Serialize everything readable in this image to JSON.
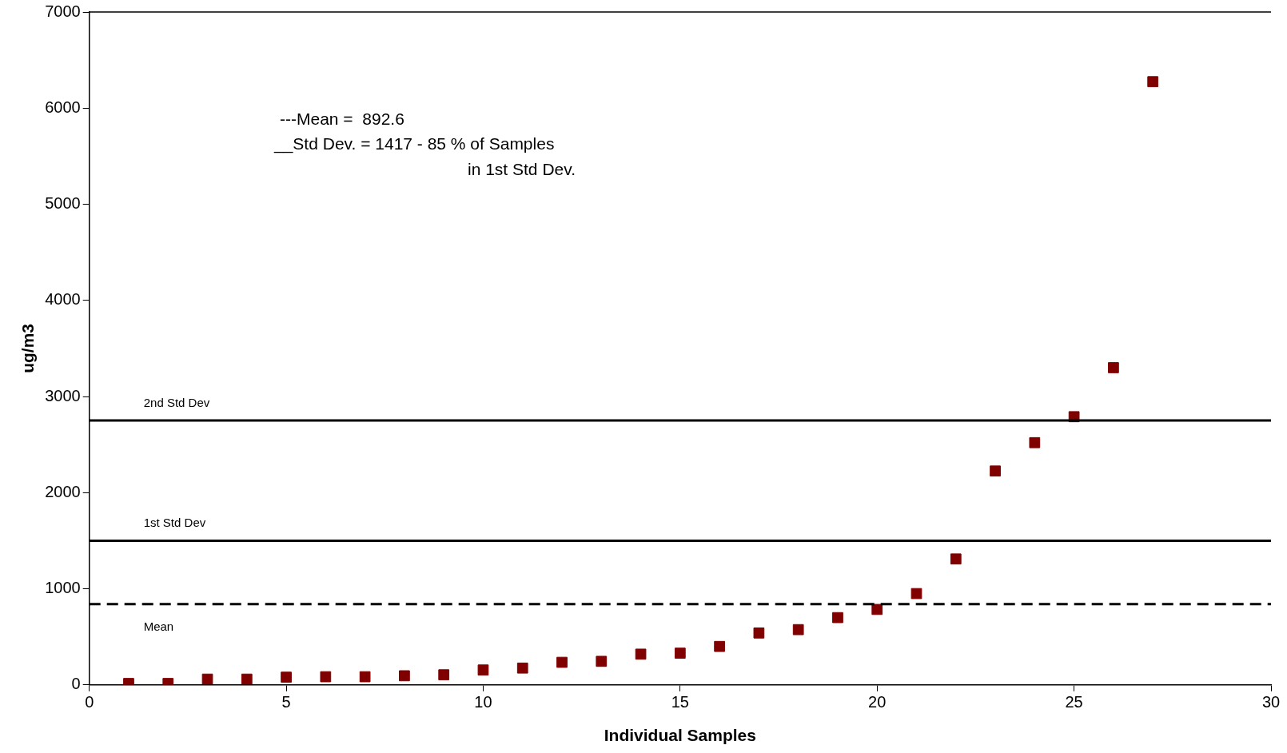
{
  "chart_data": {
    "type": "scatter",
    "xlabel": "Individual Samples",
    "ylabel": "ug/m3",
    "x": [
      1,
      2,
      3,
      4,
      5,
      6,
      7,
      8,
      9,
      10,
      11,
      12,
      13,
      14,
      15,
      16,
      17,
      18,
      19,
      20,
      21,
      22,
      23,
      24,
      25,
      26,
      27
    ],
    "series": [
      {
        "color": "#800000",
        "values": [
          15,
          15,
          60,
          60,
          80,
          85,
          85,
          95,
          105,
          155,
          175,
          235,
          245,
          320,
          330,
          400,
          540,
          575,
          700,
          785,
          950,
          1310,
          2225,
          2520,
          2790,
          3300,
          6275
        ]
      }
    ],
    "xlim": [
      0,
      30
    ],
    "xticks": [
      0,
      5,
      10,
      15,
      20,
      25,
      30
    ],
    "ylim": [
      0,
      7000
    ],
    "yticks": [
      0,
      1000,
      2000,
      3000,
      4000,
      5000,
      6000,
      7000
    ],
    "grid": false,
    "legend": false,
    "marker": "square",
    "ref_lines": [
      {
        "axis": "y",
        "value": 840,
        "label": "Mean",
        "line_style": "dashed",
        "color": "#000000"
      },
      {
        "axis": "y",
        "value": 1500,
        "label": "1st Std Dev",
        "line_style": "solid",
        "color": "#000000"
      },
      {
        "axis": "y",
        "value": 2750,
        "label": "2nd Std Dev",
        "line_style": "solid",
        "color": "#000000"
      }
    ],
    "annotations": [
      "---Mean =  892.6",
      "__Std Dev. = 1417 - 85 % of Samples",
      "in 1st Std Dev."
    ]
  }
}
